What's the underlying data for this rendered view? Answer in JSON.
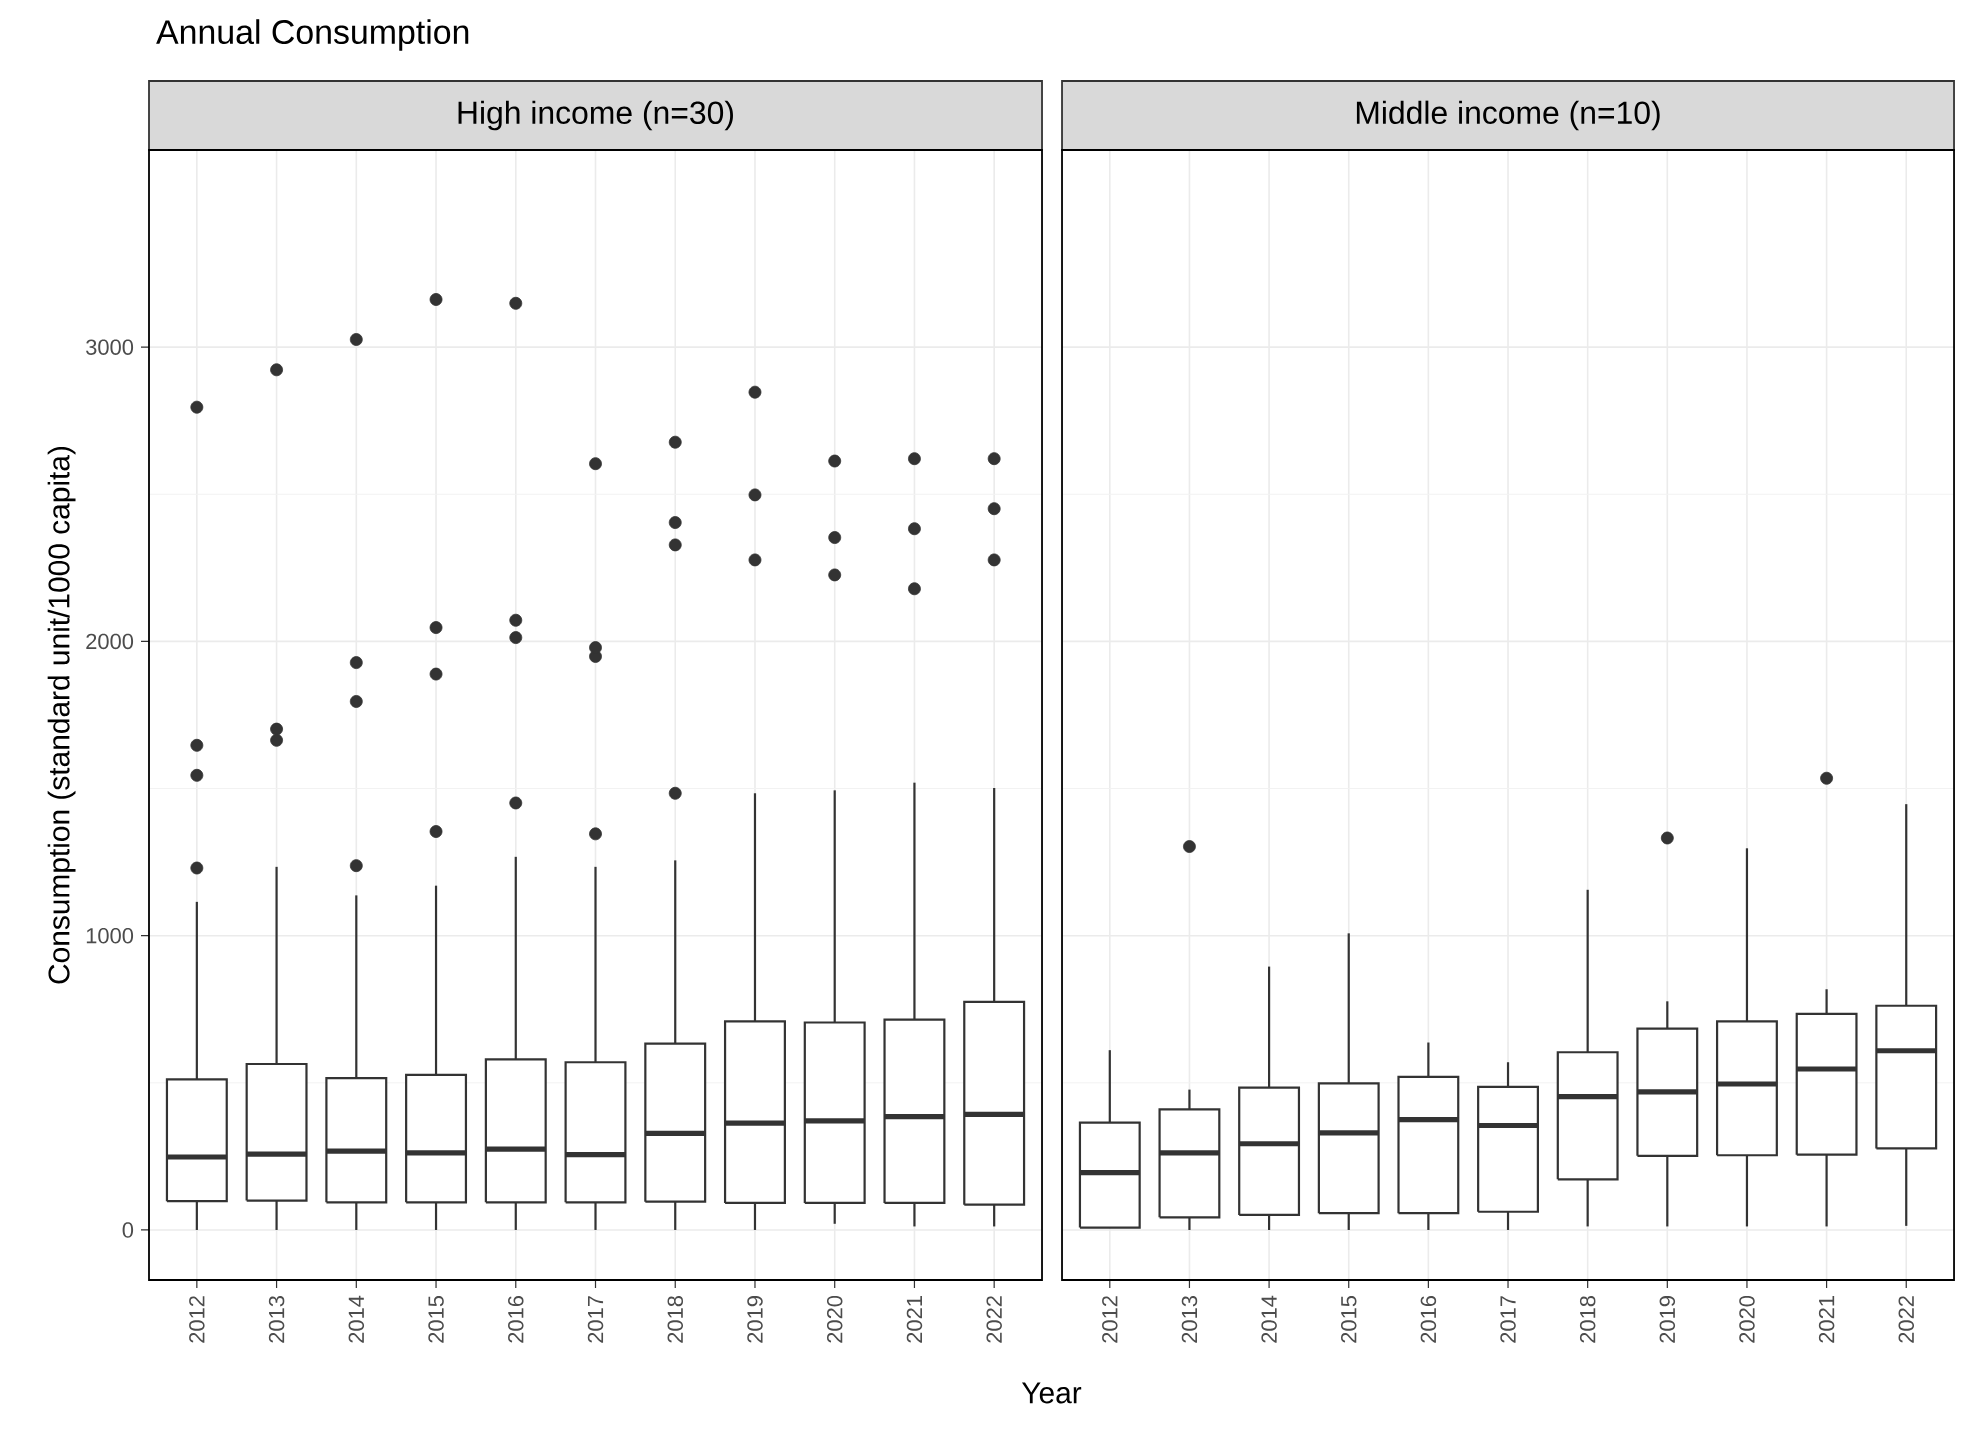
{
  "chart_data": [
    {
      "type": "box",
      "title": "Annual Consumption",
      "subtitle": "High income (n=30)",
      "xlabel": "Year",
      "ylabel": "Consumption (standard unit/1000 capita)",
      "color": "#333333",
      "grid": true,
      "categories": [
        "2012",
        "2013",
        "2014",
        "2015",
        "2016",
        "2017",
        "2018",
        "2019",
        "2020",
        "2021",
        "2022"
      ],
      "ylim": [
        -170,
        3670
      ],
      "yticks": [
        0,
        1000,
        2000,
        3000
      ],
      "boxes": [
        {
          "low": 0,
          "q1": 98,
          "median": 248,
          "q3": 512,
          "high": 1115,
          "outliers": [
            1230,
            1545,
            1647,
            2796
          ]
        },
        {
          "low": 0,
          "q1": 100,
          "median": 258,
          "q3": 564,
          "high": 1234,
          "outliers": [
            1664,
            1702,
            2923
          ]
        },
        {
          "low": 0,
          "q1": 94,
          "median": 268,
          "q3": 516,
          "high": 1137,
          "outliers": [
            1238,
            1796,
            1928,
            3026
          ]
        },
        {
          "low": 0,
          "q1": 94,
          "median": 262,
          "q3": 527,
          "high": 1170,
          "outliers": [
            1354,
            1889,
            2047,
            3162
          ]
        },
        {
          "low": 0,
          "q1": 94,
          "median": 275,
          "q3": 580,
          "high": 1268,
          "outliers": [
            1451,
            2013,
            2072,
            3149
          ]
        },
        {
          "low": 0,
          "q1": 94,
          "median": 256,
          "q3": 570,
          "high": 1234,
          "outliers": [
            1346,
            1949,
            1979,
            2604
          ]
        },
        {
          "low": 0,
          "q1": 96,
          "median": 328,
          "q3": 633,
          "high": 1256,
          "outliers": [
            1484,
            2328,
            2404,
            2677
          ]
        },
        {
          "low": 0,
          "q1": 92,
          "median": 363,
          "q3": 709,
          "high": 1484,
          "outliers": [
            2277,
            2498,
            2847
          ]
        },
        {
          "low": 21,
          "q1": 92,
          "median": 371,
          "q3": 705,
          "high": 1494,
          "outliers": [
            2226,
            2353,
            2613
          ]
        },
        {
          "low": 12,
          "q1": 92,
          "median": 385,
          "q3": 715,
          "high": 1520,
          "outliers": [
            2179,
            2383,
            2621
          ]
        },
        {
          "low": 12,
          "q1": 86,
          "median": 393,
          "q3": 775,
          "high": 1502,
          "outliers": [
            2277,
            2451,
            2621
          ]
        }
      ]
    },
    {
      "type": "box",
      "subtitle": "Middle income (n=10)",
      "color": "#333333",
      "grid": true,
      "tick_labels": "x",
      "categories": [
        "2012",
        "2013",
        "2014",
        "2015",
        "2016",
        "2017",
        "2018",
        "2019",
        "2020",
        "2021",
        "2022"
      ],
      "ylim": [
        -170,
        3670
      ],
      "yticks": [
        0,
        1000,
        2000,
        3000
      ],
      "boxes": [
        {
          "low": 8,
          "q1": 8,
          "median": 195,
          "q3": 365,
          "high": 611
        },
        {
          "low": 0,
          "q1": 43,
          "median": 262,
          "q3": 410,
          "high": 477,
          "outliers": [
            1303
          ]
        },
        {
          "low": 0,
          "q1": 51,
          "median": 293,
          "q3": 484,
          "high": 895
        },
        {
          "low": 0,
          "q1": 57,
          "median": 330,
          "q3": 498,
          "high": 1008
        },
        {
          "low": 0,
          "q1": 57,
          "median": 375,
          "q3": 520,
          "high": 637
        },
        {
          "low": 0,
          "q1": 62,
          "median": 355,
          "q3": 486,
          "high": 570
        },
        {
          "low": 12,
          "q1": 172,
          "median": 453,
          "q3": 604,
          "high": 1156
        },
        {
          "low": 12,
          "q1": 252,
          "median": 469,
          "q3": 684,
          "high": 777,
          "outliers": [
            1332
          ]
        },
        {
          "low": 12,
          "q1": 254,
          "median": 496,
          "q3": 709,
          "high": 1297
        },
        {
          "low": 12,
          "q1": 256,
          "median": 547,
          "q3": 734,
          "high": 818,
          "outliers": [
            1535
          ]
        },
        {
          "low": 14,
          "q1": 277,
          "median": 609,
          "q3": 762,
          "high": 1447
        }
      ]
    }
  ]
}
